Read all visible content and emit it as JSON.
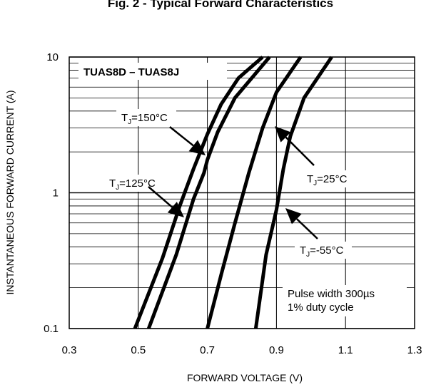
{
  "chart_data": {
    "type": "line",
    "title": "Fig. 2 - Typical Forward Characteristics",
    "part_label": "TUAS8D – TUAS8J",
    "xlabel": "FORWARD VOLTAGE (V)",
    "ylabel": "INSTANTANEOUS FORWARD CURRENT (A)",
    "xlim": [
      0.3,
      1.3
    ],
    "ylim": [
      0.1,
      10
    ],
    "yscale": "log",
    "xticks": [
      {
        "value": 0.3,
        "label": "0.3"
      },
      {
        "value": 0.5,
        "label": "0.5"
      },
      {
        "value": 0.7,
        "label": "0.7"
      },
      {
        "value": 0.9,
        "label": "0.9"
      },
      {
        "value": 1.1,
        "label": "1.1"
      },
      {
        "value": 1.3,
        "label": "1.3"
      }
    ],
    "yticks": [
      {
        "value": 0.1,
        "label": "0.1"
      },
      {
        "value": 1,
        "label": "1"
      },
      {
        "value": 10,
        "label": "10"
      }
    ],
    "grid": true,
    "series": [
      {
        "name": "T_J=150°C",
        "sub": "J",
        "label_pre": "T",
        "label_post": "=150°C",
        "x": [
          0.49,
          0.57,
          0.62,
          0.66,
          0.7,
          0.74,
          0.79,
          0.86
        ],
        "y": [
          0.1,
          0.33,
          0.8,
          1.5,
          2.7,
          4.5,
          7.0,
          10
        ]
      },
      {
        "name": "T_J=125°C",
        "sub": "J",
        "label_pre": "T",
        "label_post": "=125°C",
        "x": [
          0.53,
          0.61,
          0.66,
          0.69,
          0.7,
          0.73,
          0.78,
          0.88
        ],
        "y": [
          0.1,
          0.35,
          0.9,
          1.4,
          1.75,
          2.8,
          5.0,
          10
        ]
      },
      {
        "name": "T_J=25°C",
        "sub": "J",
        "label_pre": "T",
        "label_post": "=25°C",
        "x": [
          0.7,
          0.74,
          0.78,
          0.82,
          0.86,
          0.9,
          0.97
        ],
        "y": [
          0.1,
          0.25,
          0.6,
          1.4,
          3.0,
          5.5,
          10
        ]
      },
      {
        "name": "T_J=-55°C",
        "sub": "J",
        "label_pre": "T",
        "label_post": "=-55°C",
        "x": [
          0.84,
          0.87,
          0.9,
          0.92,
          0.94,
          0.98,
          1.06
        ],
        "y": [
          0.1,
          0.35,
          0.75,
          1.5,
          2.6,
          5.0,
          10
        ]
      }
    ],
    "annotations": [
      {
        "text": "Pulse width 300µs"
      },
      {
        "text": "1% duty cycle"
      }
    ]
  }
}
